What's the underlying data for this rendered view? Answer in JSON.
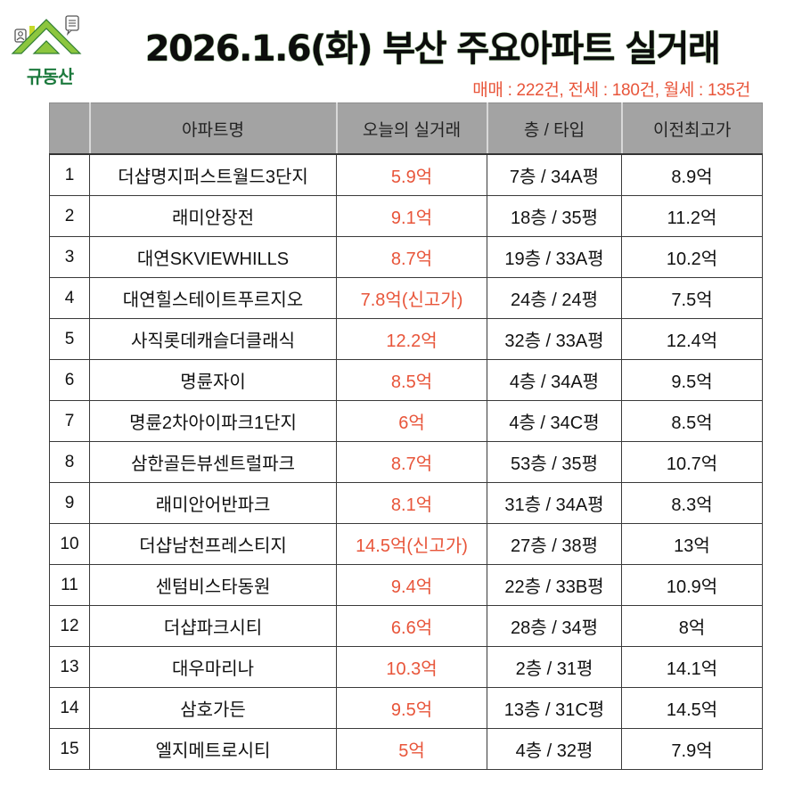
{
  "brand": {
    "logo_text": "규동산",
    "icons": [
      "house-roof-icon",
      "person-badge-icon",
      "chat-bubble-icon"
    ],
    "colors": {
      "roof_light": "#8cc63f",
      "roof_dark": "#2e7d32",
      "text": "#1d7a3e"
    }
  },
  "header": {
    "title": "2026.1.6(화) 부산 주요아파트 실거래",
    "summary": "매매 : 222건, 전세 : 180건, 월세 : 135건"
  },
  "colors": {
    "accent_price": "#e8553a",
    "header_bg": "#a3a3a3",
    "border": "#3a3a3a"
  },
  "table": {
    "columns": [
      "",
      "아파트명",
      "오늘의 실거래",
      "층 / 타입",
      "이전최고가"
    ],
    "rows": [
      {
        "no": "1",
        "name": "더샵명지퍼스트월드3단지",
        "price": "5.9억",
        "floor_type": "7층 / 34A평",
        "prev_high": "8.9억"
      },
      {
        "no": "2",
        "name": "래미안장전",
        "price": "9.1억",
        "floor_type": "18층 / 35평",
        "prev_high": "11.2억"
      },
      {
        "no": "3",
        "name": "대연SKVIEWHILLS",
        "price": "8.7억",
        "floor_type": "19층 / 33A평",
        "prev_high": "10.2억"
      },
      {
        "no": "4",
        "name": "대연힐스테이트푸르지오",
        "price": "7.8억(신고가)",
        "floor_type": "24층 / 24평",
        "prev_high": "7.5억"
      },
      {
        "no": "5",
        "name": "사직롯데캐슬더클래식",
        "price": "12.2억",
        "floor_type": "32층 / 33A평",
        "prev_high": "12.4억"
      },
      {
        "no": "6",
        "name": "명륜자이",
        "price": "8.5억",
        "floor_type": "4층 / 34A평",
        "prev_high": "9.5억"
      },
      {
        "no": "7",
        "name": "명륜2차아이파크1단지",
        "price": "6억",
        "floor_type": "4층 / 34C평",
        "prev_high": "8.5억"
      },
      {
        "no": "8",
        "name": "삼한골든뷰센트럴파크",
        "price": "8.7억",
        "floor_type": "53층 / 35평",
        "prev_high": "10.7억"
      },
      {
        "no": "9",
        "name": "래미안어반파크",
        "price": "8.1억",
        "floor_type": "31층 / 34A평",
        "prev_high": "8.3억"
      },
      {
        "no": "10",
        "name": "더샵남천프레스티지",
        "price": "14.5억(신고가)",
        "floor_type": "27층 / 38평",
        "prev_high": "13억"
      },
      {
        "no": "11",
        "name": "센텀비스타동원",
        "price": "9.4억",
        "floor_type": "22층 / 33B평",
        "prev_high": "10.9억"
      },
      {
        "no": "12",
        "name": "더샵파크시티",
        "price": "6.6억",
        "floor_type": "28층 / 34평",
        "prev_high": "8억"
      },
      {
        "no": "13",
        "name": "대우마리나",
        "price": "10.3억",
        "floor_type": "2층 / 31평",
        "prev_high": "14.1억"
      },
      {
        "no": "14",
        "name": "삼호가든",
        "price": "9.5억",
        "floor_type": "13층 / 31C평",
        "prev_high": "14.5억"
      },
      {
        "no": "15",
        "name": "엘지메트로시티",
        "price": "5억",
        "floor_type": "4층 / 32평",
        "prev_high": "7.9억"
      }
    ]
  }
}
